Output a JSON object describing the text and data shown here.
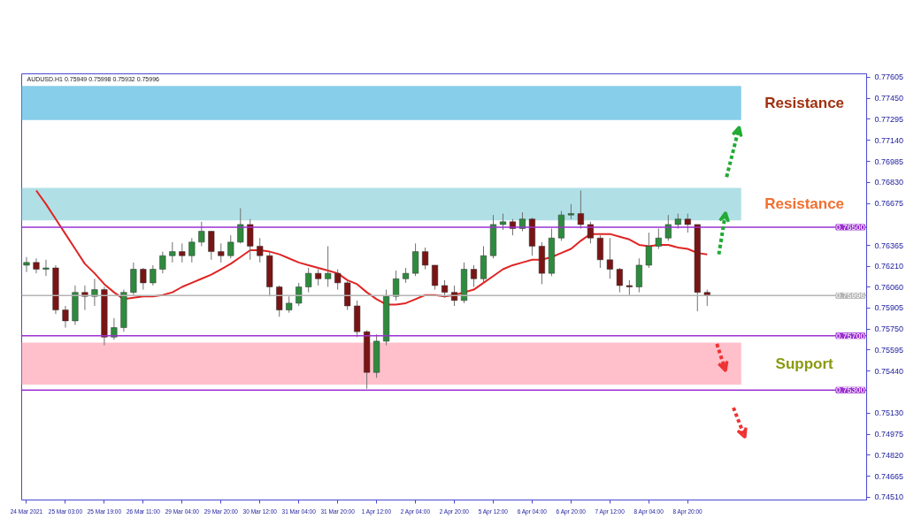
{
  "chart_data": {
    "type": "candlestick",
    "title": "AUDUSD.H1  0.75949 0.75998 0.75932 0.75996",
    "categories": [
      "24 Mar 2021",
      null,
      null,
      null,
      "25 Mar 03:00",
      null,
      null,
      null,
      "25 Mar 19:00",
      null,
      null,
      null,
      "26 Mar 11:00",
      null,
      null,
      null,
      "29 Mar 04:00",
      null,
      null,
      null,
      "29 Mar 20:00",
      null,
      null,
      null,
      "30 Mar 12:00",
      null,
      null,
      null,
      "31 Mar 04:00",
      null,
      null,
      null,
      "31 Mar 20:00",
      null,
      null,
      null,
      "1 Apr 12:00",
      null,
      null,
      null,
      "2 Apr 04:00",
      null,
      null,
      null,
      "2 Apr 20:00",
      null,
      null,
      null,
      "5 Apr 12:00",
      null,
      null,
      null,
      "6 Apr 04:00",
      null,
      null,
      null,
      "6 Apr 20:00",
      null,
      null,
      null,
      "7 Apr 12:00",
      null,
      null,
      null,
      "8 Apr 04:00",
      null,
      null,
      null,
      "8 Apr 20:00",
      null,
      null
    ],
    "ohlc": [
      [
        0.7622,
        0.7628,
        0.7617,
        0.7624
      ],
      [
        0.7624,
        0.7627,
        0.7616,
        0.7619
      ],
      [
        0.7619,
        0.7626,
        0.7614,
        0.762
      ],
      [
        0.762,
        0.7622,
        0.7586,
        0.7589
      ],
      [
        0.7589,
        0.7592,
        0.7576,
        0.7581
      ],
      [
        0.7581,
        0.7607,
        0.7578,
        0.7602
      ],
      [
        0.7602,
        0.7607,
        0.7589,
        0.7599
      ],
      [
        0.7599,
        0.7612,
        0.7592,
        0.7604
      ],
      [
        0.7604,
        0.7606,
        0.7563,
        0.7569
      ],
      [
        0.7569,
        0.7583,
        0.7567,
        0.7576
      ],
      [
        0.7576,
        0.7604,
        0.7573,
        0.7602
      ],
      [
        0.7602,
        0.7624,
        0.76,
        0.7619
      ],
      [
        0.7619,
        0.762,
        0.7604,
        0.7609
      ],
      [
        0.7609,
        0.7622,
        0.7607,
        0.7619
      ],
      [
        0.7619,
        0.7632,
        0.7616,
        0.7629
      ],
      [
        0.7629,
        0.7639,
        0.7624,
        0.7632
      ],
      [
        0.7632,
        0.7638,
        0.7624,
        0.7629
      ],
      [
        0.7629,
        0.7642,
        0.7624,
        0.7639
      ],
      [
        0.7639,
        0.7654,
        0.7636,
        0.7647
      ],
      [
        0.7647,
        0.7647,
        0.7626,
        0.7632
      ],
      [
        0.7632,
        0.7638,
        0.7624,
        0.7629
      ],
      [
        0.7629,
        0.7644,
        0.7627,
        0.7639
      ],
      [
        0.7639,
        0.7664,
        0.7638,
        0.7652
      ],
      [
        0.7652,
        0.7656,
        0.7626,
        0.7636
      ],
      [
        0.7636,
        0.7642,
        0.7624,
        0.7629
      ],
      [
        0.7629,
        0.7632,
        0.7599,
        0.7606
      ],
      [
        0.7606,
        0.7607,
        0.7584,
        0.7589
      ],
      [
        0.7589,
        0.7599,
        0.7587,
        0.7594
      ],
      [
        0.7594,
        0.7609,
        0.7592,
        0.7606
      ],
      [
        0.7606,
        0.762,
        0.7602,
        0.7616
      ],
      [
        0.7616,
        0.7619,
        0.7607,
        0.7612
      ],
      [
        0.7612,
        0.7636,
        0.7606,
        0.7616
      ],
      [
        0.7616,
        0.7619,
        0.7604,
        0.7609
      ],
      [
        0.7609,
        0.7611,
        0.7589,
        0.7592
      ],
      [
        0.7592,
        0.7596,
        0.7569,
        0.7573
      ],
      [
        0.7573,
        0.7574,
        0.7531,
        0.7543
      ],
      [
        0.7543,
        0.7571,
        0.7539,
        0.7566
      ],
      [
        0.7566,
        0.7604,
        0.7563,
        0.7599
      ],
      [
        0.7599,
        0.7618,
        0.7596,
        0.7612
      ],
      [
        0.7612,
        0.762,
        0.7609,
        0.7616
      ],
      [
        0.7616,
        0.7638,
        0.7614,
        0.7632
      ],
      [
        0.7632,
        0.7635,
        0.7619,
        0.7622
      ],
      [
        0.7622,
        0.7622,
        0.7604,
        0.7607
      ],
      [
        0.7607,
        0.7611,
        0.7598,
        0.7602
      ],
      [
        0.7602,
        0.7607,
        0.7592,
        0.7596
      ],
      [
        0.7596,
        0.7624,
        0.7594,
        0.7619
      ],
      [
        0.7619,
        0.7622,
        0.7606,
        0.7612
      ],
      [
        0.7612,
        0.7636,
        0.7609,
        0.7629
      ],
      [
        0.7629,
        0.7659,
        0.7627,
        0.7652
      ],
      [
        0.7652,
        0.766,
        0.7648,
        0.7654
      ],
      [
        0.7654,
        0.7656,
        0.7644,
        0.7649
      ],
      [
        0.7649,
        0.7661,
        0.7647,
        0.7656
      ],
      [
        0.7656,
        0.7657,
        0.7629,
        0.7636
      ],
      [
        0.7636,
        0.7639,
        0.7608,
        0.7616
      ],
      [
        0.7616,
        0.7649,
        0.7614,
        0.7642
      ],
      [
        0.7642,
        0.7662,
        0.764,
        0.7659
      ],
      [
        0.7659,
        0.7667,
        0.7656,
        0.766
      ],
      [
        0.766,
        0.7677,
        0.7649,
        0.7652
      ],
      [
        0.7652,
        0.7654,
        0.7638,
        0.7642
      ],
      [
        0.7642,
        0.7644,
        0.762,
        0.7626
      ],
      [
        0.7626,
        0.7642,
        0.7612,
        0.7619
      ],
      [
        0.7619,
        0.762,
        0.7602,
        0.7607
      ],
      [
        0.7607,
        0.7611,
        0.76,
        0.7606
      ],
      [
        0.7606,
        0.7627,
        0.7602,
        0.7622
      ],
      [
        0.7622,
        0.7646,
        0.762,
        0.7636
      ],
      [
        0.7636,
        0.7649,
        0.7634,
        0.7642
      ],
      [
        0.7642,
        0.7659,
        0.764,
        0.7652
      ],
      [
        0.7652,
        0.766,
        0.7649,
        0.7656
      ],
      [
        0.7656,
        0.766,
        0.7646,
        0.7652
      ],
      [
        0.7652,
        0.7652,
        0.7588,
        0.7602
      ],
      [
        0.7602,
        0.7604,
        0.7592,
        0.75996
      ]
    ],
    "series": [
      {
        "type": "line",
        "color": "#e02424",
        "values": [
          null,
          0.7677,
          0.7667,
          0.7656,
          0.7645,
          0.7634,
          0.7623,
          0.7616,
          0.7608,
          0.7602,
          0.7597,
          0.7598,
          0.7599,
          0.7599,
          0.76,
          0.7602,
          0.7606,
          0.7609,
          0.7612,
          0.7615,
          0.7619,
          0.7623,
          0.7628,
          0.7633,
          0.7633,
          0.7632,
          0.763,
          0.7627,
          0.7624,
          0.7622,
          0.762,
          0.7618,
          0.7616,
          0.7611,
          0.7608,
          0.7602,
          0.7597,
          0.7593,
          0.7593,
          0.7594,
          0.7597,
          0.76,
          0.76,
          0.7599,
          0.76,
          0.7602,
          0.7604,
          0.7609,
          0.7614,
          0.7619,
          0.7622,
          0.7624,
          0.7626,
          0.7626,
          0.7628,
          0.7631,
          0.7634,
          0.764,
          0.7645,
          0.7645,
          0.7645,
          0.7643,
          0.7641,
          0.7637,
          0.7636,
          0.7637,
          0.7637,
          0.7635,
          0.7634,
          0.7631,
          0.763
        ]
      }
    ],
    "ylim": [
      0.7449,
      0.7763
    ],
    "yticks": [
      {
        "value": 0.77605,
        "label": "0.77605"
      },
      {
        "value": 0.7745,
        "label": "0.77450"
      },
      {
        "value": 0.77295,
        "label": "0.77295"
      },
      {
        "value": 0.7714,
        "label": "0.77140"
      },
      {
        "value": 0.76985,
        "label": "0.76985"
      },
      {
        "value": 0.7683,
        "label": "0.76830"
      },
      {
        "value": 0.76675,
        "label": "0.76675"
      },
      {
        "value": 0.76365,
        "label": "0.76365"
      },
      {
        "value": 0.7621,
        "label": "0.76210"
      },
      {
        "value": 0.7606,
        "label": "0.76060"
      },
      {
        "value": 0.75905,
        "label": "0.75905"
      },
      {
        "value": 0.7575,
        "label": "0.75750"
      },
      {
        "value": 0.75595,
        "label": "0.75595"
      },
      {
        "value": 0.7544,
        "label": "0.75440"
      },
      {
        "value": 0.7513,
        "label": "0.75130"
      },
      {
        "value": 0.74975,
        "label": "0.74975"
      },
      {
        "value": 0.7482,
        "label": "0.74820"
      },
      {
        "value": 0.74665,
        "label": "0.74665"
      },
      {
        "value": 0.7451,
        "label": "0.74510"
      }
    ],
    "ref_lines": [
      {
        "axis": "y",
        "value": 0.765,
        "label": "0.76500",
        "color": "#9b30d0"
      },
      {
        "axis": "y",
        "value": 0.757,
        "label": "0.75700",
        "color": "#9b30d0"
      },
      {
        "axis": "y",
        "value": 0.753,
        "label": "0.75300",
        "color": "#9b30d0"
      },
      {
        "axis": "y",
        "value": 0.75996,
        "label": "0.75996",
        "color": "#b4b4b4"
      }
    ],
    "bands": [
      {
        "axis": "y",
        "from": 0.7729,
        "to": 0.7754,
        "label": "Resistance",
        "color": "#87ceeb"
      },
      {
        "axis": "y",
        "from": 0.7655,
        "to": 0.7679,
        "label": "Resistance",
        "color": "#b0e0e6"
      },
      {
        "axis": "y",
        "from": 0.7534,
        "to": 0.7565,
        "label": "Support",
        "color": "#ffc0cb"
      }
    ]
  }
}
